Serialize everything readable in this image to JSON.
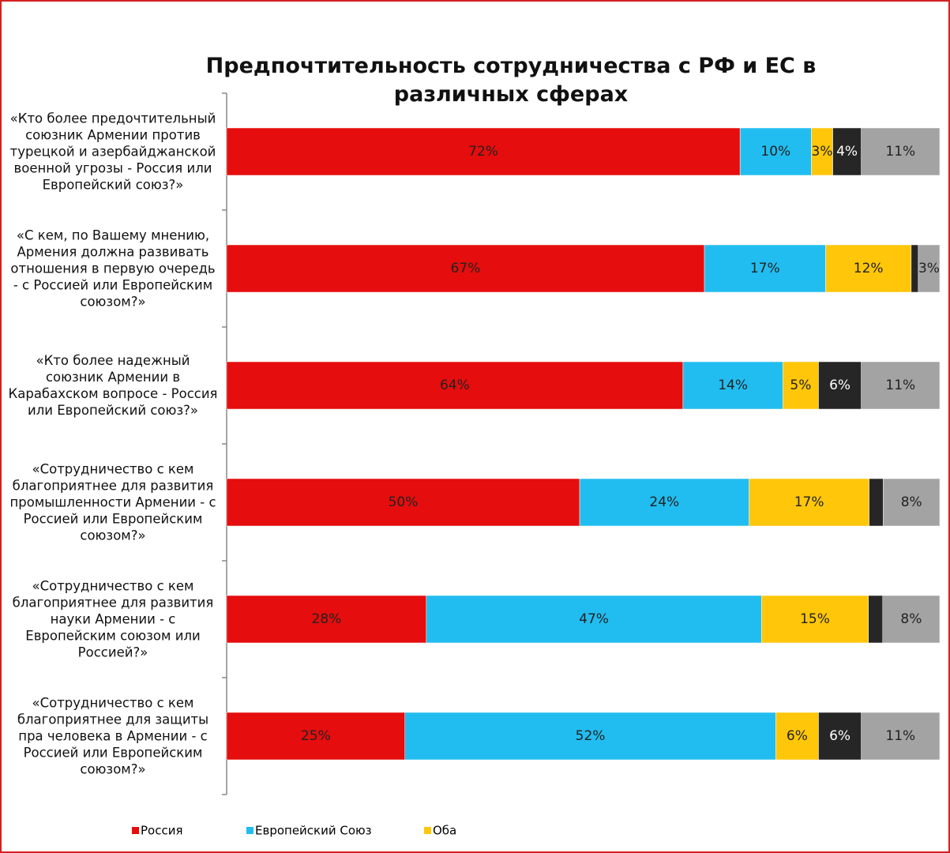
{
  "chart_data": {
    "type": "stacked-bar-100",
    "title": "Предпочтительность сотрудничества с РФ и ЕС в различных сферах",
    "categories": [
      "«Кто более предочтительный союзник Армении против турецкой и азербайджанской военной угрозы - Россия или Европейский союз?»",
      "«С кем, по Вашему мнению, Армения должна развивать отношения в первую очередь - с Россией или Европейским союзом?»",
      "«Кто более надежный союзник Армении в Карабахском вопросе - Россия или Европейский союз?»",
      "«Сотрудничество с кем благоприятнее для развития промышленности Армении - с Россией или Европейским союзом?»",
      "«Сотрудничество с кем благоприятнее для развития науки Армении - с Европейским союзом или Россией?»",
      "«Сотрудничество с кем благоприятнее для защиты пра человека в Армении - с Россией или Европейским союзом?»"
    ],
    "series": [
      {
        "name": "Россия",
        "color": "#e50d0d",
        "values": [
          72,
          67,
          64,
          50,
          28,
          25
        ],
        "value_labels": [
          "72%",
          "67%",
          "64%",
          "50%",
          "28%",
          "25%"
        ]
      },
      {
        "name": "Европейский Союз",
        "color": "#22bdf0",
        "values": [
          10,
          17,
          14,
          24,
          47,
          52
        ],
        "value_labels": [
          "10%",
          "17%",
          "14%",
          "24%",
          "47%",
          "52%"
        ]
      },
      {
        "name": "Оба",
        "color": "#ffc60a",
        "values": [
          3,
          12,
          5,
          17,
          15,
          6
        ],
        "value_labels": [
          "3%",
          "12%",
          "5%",
          "17%",
          "15%",
          "6%"
        ]
      },
      {
        "color": "#262626",
        "values": [
          4,
          1,
          6,
          2,
          2,
          6
        ],
        "value_labels": [
          "4%",
          null,
          "6%",
          null,
          null,
          "6%"
        ]
      },
      {
        "color": "#a3a3a3",
        "values": [
          11,
          3,
          11,
          8,
          8,
          11
        ],
        "value_labels": [
          "11%",
          "3%",
          "11%",
          "8%",
          "8%",
          "11%"
        ]
      }
    ]
  }
}
